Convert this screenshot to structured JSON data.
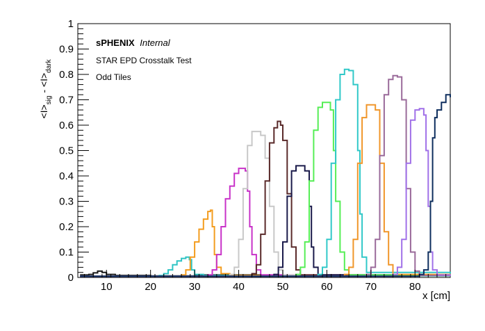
{
  "chart_data": {
    "type": "line",
    "annotations": {
      "brand": "sPHENIX",
      "brand_suffix": "Internal",
      "line2": "STAR EPD Crosstalk Test",
      "line3": "Odd Tiles"
    },
    "xlabel": "x [cm]",
    "ylabel": {
      "base1": "<I>",
      "sub1": "sig",
      "minus": " - ",
      "base2": "<I>",
      "sub2": "dark"
    },
    "xlim": [
      3.5,
      88
    ],
    "ylim": [
      0,
      1
    ],
    "x_ticks": [
      10,
      20,
      30,
      40,
      50,
      60,
      70,
      80
    ],
    "y_ticks": [
      0,
      0.1,
      0.2,
      0.3,
      0.4,
      0.5,
      0.6,
      0.7,
      0.8,
      0.9,
      1
    ],
    "y_tick_labels": [
      "0",
      "0.1",
      "0.2",
      "0.3",
      "0.4",
      "0.5",
      "0.6",
      "0.7",
      "0.8",
      "0.9",
      "1"
    ],
    "grid": false,
    "series": [
      {
        "color": "#1a1a1a",
        "points": [
          [
            4,
            0.01
          ],
          [
            6,
            0.012
          ],
          [
            7,
            0.018
          ],
          [
            8,
            0.025
          ],
          [
            9,
            0.02
          ],
          [
            10,
            0.012
          ],
          [
            12,
            0.008
          ],
          [
            20,
            0.006
          ],
          [
            30,
            0.01
          ],
          [
            40,
            0.01
          ],
          [
            50,
            0.008
          ],
          [
            60,
            0.01
          ],
          [
            70,
            0.01
          ],
          [
            80,
            0.01
          ],
          [
            88,
            0.01
          ]
        ]
      },
      {
        "color": "#2ec4c4",
        "points": [
          [
            4,
            0.005
          ],
          [
            20,
            0.005
          ],
          [
            22,
            0.008
          ],
          [
            23,
            0.015
          ],
          [
            24,
            0.03
          ],
          [
            25,
            0.05
          ],
          [
            26,
            0.065
          ],
          [
            27,
            0.075
          ],
          [
            28,
            0.08
          ],
          [
            28.8,
            0.07
          ],
          [
            29.3,
            0.03
          ],
          [
            30,
            0.012
          ],
          [
            32,
            0.008
          ],
          [
            40,
            0.006
          ],
          [
            88,
            0.006
          ]
        ]
      },
      {
        "color": "#f39c1e",
        "points": [
          [
            4,
            0.005
          ],
          [
            26,
            0.005
          ],
          [
            27,
            0.01
          ],
          [
            28,
            0.03
          ],
          [
            29,
            0.08
          ],
          [
            30,
            0.14
          ],
          [
            31,
            0.19
          ],
          [
            32,
            0.23
          ],
          [
            33,
            0.26
          ],
          [
            33.6,
            0.265
          ],
          [
            34,
            0.2
          ],
          [
            34.5,
            0.09
          ],
          [
            35,
            0.04
          ],
          [
            36,
            0.015
          ],
          [
            38,
            0.008
          ],
          [
            88,
            0.006
          ]
        ]
      },
      {
        "color": "#c832c8",
        "points": [
          [
            4,
            0.005
          ],
          [
            32,
            0.005
          ],
          [
            33,
            0.01
          ],
          [
            34,
            0.03
          ],
          [
            35,
            0.09
          ],
          [
            36,
            0.2
          ],
          [
            37,
            0.31
          ],
          [
            38,
            0.36
          ],
          [
            39,
            0.41
          ],
          [
            40,
            0.43
          ],
          [
            41,
            0.43
          ],
          [
            41.5,
            0.42
          ],
          [
            42,
            0.34
          ],
          [
            42.5,
            0.2
          ],
          [
            43,
            0.09
          ],
          [
            44,
            0.03
          ],
          [
            45,
            0.01
          ],
          [
            88,
            0.006
          ]
        ]
      },
      {
        "color": "#c8c8c8",
        "points": [
          [
            4,
            0.005
          ],
          [
            37,
            0.005
          ],
          [
            38,
            0.012
          ],
          [
            39,
            0.04
          ],
          [
            40,
            0.15
          ],
          [
            41,
            0.35
          ],
          [
            42,
            0.52
          ],
          [
            43,
            0.575
          ],
          [
            44,
            0.575
          ],
          [
            45,
            0.56
          ],
          [
            46,
            0.47
          ],
          [
            47,
            0.28
          ],
          [
            48,
            0.1
          ],
          [
            49,
            0.03
          ],
          [
            50,
            0.01
          ],
          [
            88,
            0.006
          ]
        ]
      },
      {
        "color": "#5a2a2a",
        "points": [
          [
            4,
            0.005
          ],
          [
            42,
            0.005
          ],
          [
            43,
            0.015
          ],
          [
            44,
            0.05
          ],
          [
            45,
            0.17
          ],
          [
            46,
            0.38
          ],
          [
            47,
            0.53
          ],
          [
            48,
            0.59
          ],
          [
            48.8,
            0.615
          ],
          [
            49.5,
            0.6
          ],
          [
            50,
            0.54
          ],
          [
            51,
            0.33
          ],
          [
            52,
            0.12
          ],
          [
            53,
            0.03
          ],
          [
            54,
            0.01
          ],
          [
            88,
            0.006
          ]
        ]
      },
      {
        "color": "#1a1a4a",
        "points": [
          [
            4,
            0.005
          ],
          [
            47,
            0.005
          ],
          [
            48,
            0.012
          ],
          [
            49,
            0.04
          ],
          [
            50,
            0.14
          ],
          [
            51,
            0.32
          ],
          [
            52,
            0.42
          ],
          [
            53,
            0.44
          ],
          [
            54,
            0.44
          ],
          [
            55,
            0.42
          ],
          [
            56,
            0.28
          ],
          [
            56.5,
            0.12
          ],
          [
            57,
            0.04
          ],
          [
            58,
            0.01
          ],
          [
            88,
            0.006
          ]
        ]
      },
      {
        "color": "#55ee55",
        "points": [
          [
            4,
            0.005
          ],
          [
            52,
            0.005
          ],
          [
            53,
            0.012
          ],
          [
            54,
            0.04
          ],
          [
            55,
            0.14
          ],
          [
            56,
            0.38
          ],
          [
            57,
            0.58
          ],
          [
            58,
            0.67
          ],
          [
            59,
            0.69
          ],
          [
            60,
            0.69
          ],
          [
            60.8,
            0.66
          ],
          [
            61.5,
            0.5
          ],
          [
            62,
            0.3
          ],
          [
            63,
            0.1
          ],
          [
            64,
            0.03
          ],
          [
            65,
            0.01
          ],
          [
            88,
            0.006
          ]
        ]
      },
      {
        "color": "#30c8c8",
        "points": [
          [
            4,
            0.005
          ],
          [
            57,
            0.005
          ],
          [
            58,
            0.012
          ],
          [
            59,
            0.04
          ],
          [
            60,
            0.15
          ],
          [
            61,
            0.45
          ],
          [
            62,
            0.7
          ],
          [
            63,
            0.8
          ],
          [
            64,
            0.82
          ],
          [
            65,
            0.815
          ],
          [
            66,
            0.76
          ],
          [
            67,
            0.5
          ],
          [
            67.5,
            0.25
          ],
          [
            68,
            0.08
          ],
          [
            69,
            0.02
          ],
          [
            88,
            0.006
          ]
        ]
      },
      {
        "color": "#f0962a",
        "points": [
          [
            4,
            0.005
          ],
          [
            63,
            0.005
          ],
          [
            64,
            0.012
          ],
          [
            65,
            0.04
          ],
          [
            66,
            0.15
          ],
          [
            67,
            0.45
          ],
          [
            68,
            0.63
          ],
          [
            69,
            0.68
          ],
          [
            70,
            0.68
          ],
          [
            71,
            0.66
          ],
          [
            72,
            0.45
          ],
          [
            73,
            0.18
          ],
          [
            74,
            0.05
          ],
          [
            75,
            0.012
          ],
          [
            88,
            0.006
          ]
        ]
      },
      {
        "color": "#9a6a9a",
        "points": [
          [
            4,
            0.005
          ],
          [
            68,
            0.005
          ],
          [
            69,
            0.012
          ],
          [
            70,
            0.04
          ],
          [
            71,
            0.15
          ],
          [
            72,
            0.48
          ],
          [
            73,
            0.72
          ],
          [
            74,
            0.78
          ],
          [
            75,
            0.795
          ],
          [
            76,
            0.79
          ],
          [
            77,
            0.7
          ],
          [
            78,
            0.35
          ],
          [
            79,
            0.1
          ],
          [
            80,
            0.025
          ],
          [
            81,
            0.008
          ],
          [
            88,
            0.006
          ]
        ]
      },
      {
        "color": "#a070e8",
        "points": [
          [
            4,
            0.005
          ],
          [
            74,
            0.005
          ],
          [
            75,
            0.012
          ],
          [
            76,
            0.04
          ],
          [
            77,
            0.15
          ],
          [
            78,
            0.45
          ],
          [
            79,
            0.62
          ],
          [
            80,
            0.66
          ],
          [
            81,
            0.665
          ],
          [
            82,
            0.64
          ],
          [
            82.5,
            0.5
          ],
          [
            83,
            0.28
          ],
          [
            83.5,
            0.1
          ],
          [
            84,
            0.03
          ],
          [
            85,
            0.01
          ],
          [
            88,
            0.006
          ]
        ]
      },
      {
        "color": "#0e2e5e",
        "points": [
          [
            4,
            0.005
          ],
          [
            80,
            0.005
          ],
          [
            81,
            0.012
          ],
          [
            82,
            0.03
          ],
          [
            83,
            0.1
          ],
          [
            83.5,
            0.3
          ],
          [
            84,
            0.55
          ],
          [
            84.5,
            0.63
          ],
          [
            85,
            0.66
          ],
          [
            86,
            0.69
          ],
          [
            87,
            0.72
          ],
          [
            88,
            0.71
          ]
        ]
      }
    ]
  }
}
